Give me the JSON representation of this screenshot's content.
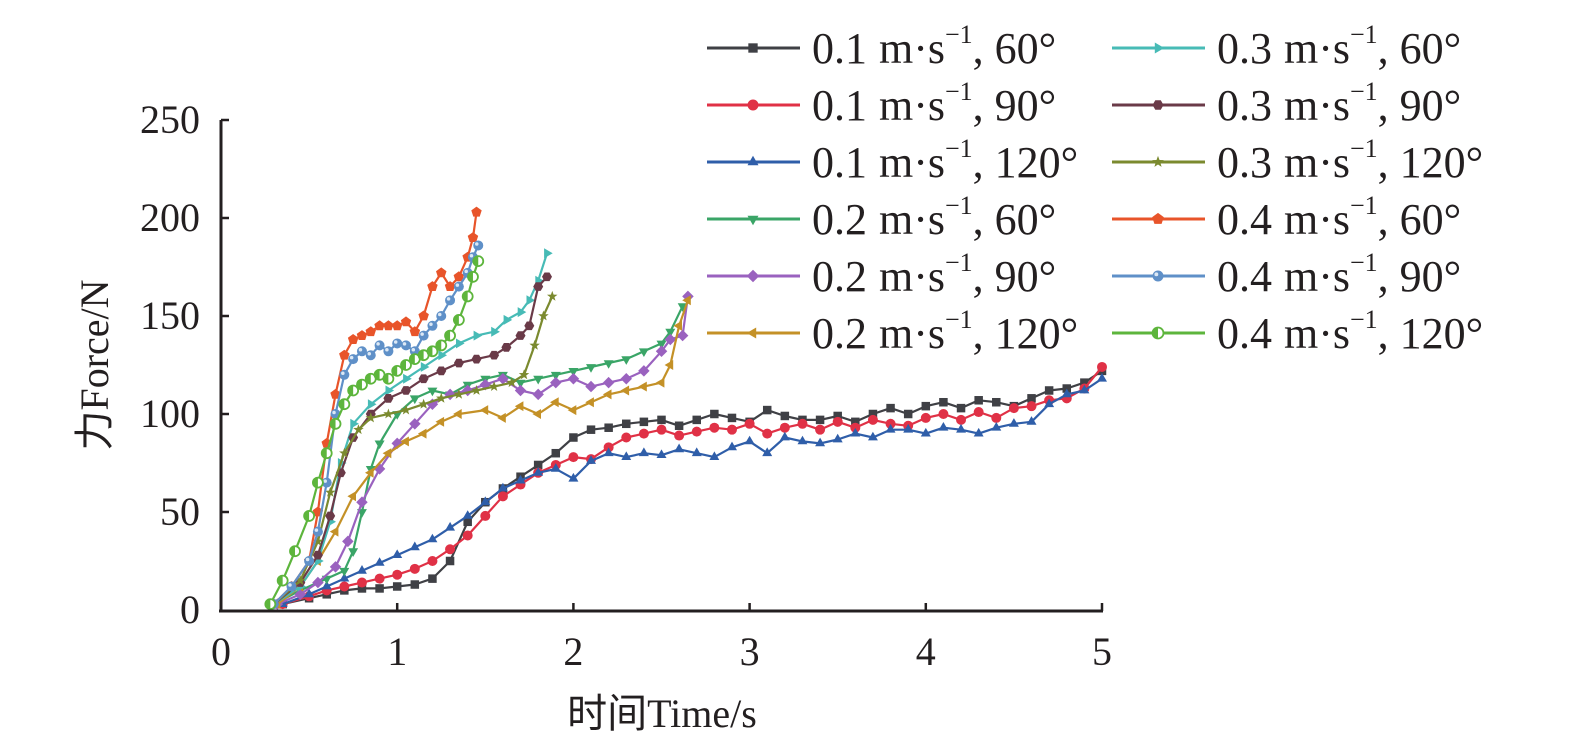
{
  "chart_data": {
    "type": "line",
    "title": "",
    "xlabel": "时间Time/s",
    "ylabel": "力Force/N",
    "xlim": [
      0,
      5
    ],
    "ylim": [
      0,
      250
    ],
    "xticks": [
      "0",
      "1",
      "2",
      "3",
      "4",
      "5"
    ],
    "yticks": [
      "0",
      "50",
      "100",
      "150",
      "200",
      "250"
    ],
    "grid": false,
    "legend_position": "top-right",
    "legend_unit": "m·s",
    "legend_exponent": "−1",
    "series": [
      {
        "name": "0.1 m·s−1, 60°",
        "speed": "0.1",
        "angle": "60°",
        "color": "#3f4045",
        "marker": "square",
        "x": [
          0.35,
          0.5,
          0.6,
          0.7,
          0.8,
          0.9,
          1.0,
          1.1,
          1.2,
          1.3,
          1.4,
          1.5,
          1.6,
          1.7,
          1.8,
          1.9,
          2.0,
          2.1,
          2.2,
          2.3,
          2.4,
          2.5,
          2.6,
          2.7,
          2.8,
          2.9,
          3.0,
          3.1,
          3.2,
          3.3,
          3.4,
          3.5,
          3.6,
          3.7,
          3.8,
          3.9,
          4.0,
          4.1,
          4.2,
          4.3,
          4.4,
          4.5,
          4.6,
          4.7,
          4.8,
          4.9,
          5.0
        ],
        "y": [
          3,
          6,
          8,
          10,
          11,
          11,
          12,
          13,
          16,
          25,
          45,
          55,
          62,
          68,
          74,
          80,
          88,
          92,
          93,
          95,
          96,
          97,
          94,
          97,
          100,
          98,
          96,
          102,
          99,
          97,
          97,
          99,
          96,
          100,
          103,
          100,
          104,
          106,
          103,
          107,
          106,
          104,
          108,
          112,
          113,
          116,
          122
        ]
      },
      {
        "name": "0.1 m·s−1, 90°",
        "speed": "0.1",
        "angle": "90°",
        "color": "#e03146",
        "marker": "circle",
        "x": [
          0.35,
          0.5,
          0.6,
          0.7,
          0.8,
          0.9,
          1.0,
          1.1,
          1.2,
          1.3,
          1.4,
          1.5,
          1.6,
          1.7,
          1.8,
          1.9,
          2.0,
          2.1,
          2.2,
          2.3,
          2.4,
          2.5,
          2.6,
          2.7,
          2.8,
          2.9,
          3.0,
          3.1,
          3.2,
          3.3,
          3.4,
          3.5,
          3.6,
          3.7,
          3.8,
          3.9,
          4.0,
          4.1,
          4.2,
          4.3,
          4.4,
          4.5,
          4.6,
          4.7,
          4.8,
          4.9,
          5.0
        ],
        "y": [
          3,
          7,
          10,
          12,
          14,
          16,
          18,
          21,
          25,
          31,
          38,
          48,
          58,
          64,
          70,
          74,
          78,
          77,
          83,
          88,
          90,
          92,
          89,
          91,
          93,
          92,
          95,
          90,
          93,
          95,
          92,
          96,
          93,
          97,
          95,
          94,
          98,
          100,
          97,
          101,
          98,
          103,
          104,
          107,
          108,
          113,
          124
        ]
      },
      {
        "name": "0.1 m·s−1, 120°",
        "speed": "0.1",
        "angle": "120°",
        "color": "#2f5ea9",
        "marker": "triangle-up",
        "x": [
          0.35,
          0.5,
          0.6,
          0.7,
          0.8,
          0.9,
          1.0,
          1.1,
          1.2,
          1.3,
          1.4,
          1.5,
          1.6,
          1.7,
          1.8,
          1.9,
          2.0,
          2.1,
          2.2,
          2.3,
          2.4,
          2.5,
          2.6,
          2.7,
          2.8,
          2.9,
          3.0,
          3.1,
          3.2,
          3.3,
          3.4,
          3.5,
          3.6,
          3.7,
          3.8,
          3.9,
          4.0,
          4.1,
          4.2,
          4.3,
          4.4,
          4.5,
          4.6,
          4.7,
          4.8,
          4.9,
          5.0
        ],
        "y": [
          3,
          8,
          12,
          16,
          20,
          24,
          28,
          32,
          36,
          42,
          48,
          55,
          62,
          66,
          70,
          72,
          67,
          76,
          80,
          78,
          80,
          79,
          82,
          80,
          78,
          83,
          86,
          80,
          88,
          86,
          85,
          87,
          90,
          88,
          92,
          92,
          90,
          93,
          92,
          90,
          93,
          95,
          96,
          105,
          110,
          112,
          118
        ]
      },
      {
        "name": "0.2 m·s−1, 60°",
        "speed": "0.2",
        "angle": "60°",
        "color": "#3aa567",
        "marker": "triangle-down",
        "x": [
          0.3,
          0.45,
          0.6,
          0.7,
          0.75,
          0.8,
          0.85,
          0.9,
          1.0,
          1.1,
          1.2,
          1.3,
          1.4,
          1.5,
          1.6,
          1.7,
          1.8,
          1.9,
          2.0,
          2.1,
          2.2,
          2.3,
          2.4,
          2.5,
          2.55,
          2.62
        ],
        "y": [
          3,
          10,
          16,
          20,
          30,
          50,
          72,
          85,
          100,
          108,
          112,
          110,
          115,
          118,
          120,
          116,
          118,
          120,
          122,
          124,
          126,
          128,
          132,
          136,
          142,
          155
        ]
      },
      {
        "name": "0.2 m·s−1, 90°",
        "speed": "0.2",
        "angle": "90°",
        "color": "#9a62bf",
        "marker": "diamond",
        "x": [
          0.32,
          0.45,
          0.55,
          0.65,
          0.72,
          0.8,
          0.9,
          1.0,
          1.1,
          1.2,
          1.3,
          1.4,
          1.5,
          1.6,
          1.7,
          1.8,
          1.9,
          2.0,
          2.1,
          2.2,
          2.3,
          2.4,
          2.5,
          2.55,
          2.62,
          2.65
        ],
        "y": [
          3,
          8,
          14,
          22,
          35,
          55,
          72,
          85,
          95,
          105,
          110,
          112,
          115,
          118,
          112,
          110,
          116,
          118,
          114,
          116,
          118,
          122,
          132,
          138,
          140,
          160
        ]
      },
      {
        "name": "0.2 m·s−1, 120°",
        "speed": "0.2",
        "angle": "120°",
        "color": "#c49127",
        "marker": "triangle-left",
        "x": [
          0.32,
          0.45,
          0.55,
          0.65,
          0.75,
          0.85,
          0.95,
          1.05,
          1.15,
          1.25,
          1.35,
          1.5,
          1.6,
          1.7,
          1.8,
          1.9,
          2.0,
          2.1,
          2.2,
          2.3,
          2.4,
          2.5,
          2.55,
          2.6,
          2.65
        ],
        "y": [
          3,
          12,
          25,
          40,
          58,
          70,
          80,
          86,
          90,
          96,
          100,
          102,
          98,
          104,
          100,
          106,
          102,
          106,
          110,
          112,
          114,
          116,
          125,
          145,
          158
        ]
      },
      {
        "name": "0.3 m·s−1, 60°",
        "speed": "0.3",
        "angle": "60°",
        "color": "#47bbb6",
        "marker": "triangle-right",
        "x": [
          0.3,
          0.45,
          0.55,
          0.62,
          0.68,
          0.75,
          0.85,
          0.95,
          1.05,
          1.15,
          1.25,
          1.35,
          1.45,
          1.55,
          1.62,
          1.7,
          1.75,
          1.8,
          1.85
        ],
        "y": [
          3,
          12,
          25,
          45,
          75,
          95,
          105,
          112,
          118,
          124,
          130,
          136,
          140,
          142,
          148,
          152,
          158,
          168,
          182
        ]
      },
      {
        "name": "0.3 m·s−1, 90°",
        "speed": "0.3",
        "angle": "90°",
        "color": "#6a3a48",
        "marker": "hexagon",
        "x": [
          0.3,
          0.45,
          0.55,
          0.62,
          0.68,
          0.75,
          0.85,
          0.95,
          1.05,
          1.15,
          1.25,
          1.35,
          1.45,
          1.55,
          1.62,
          1.7,
          1.75,
          1.8,
          1.85
        ],
        "y": [
          3,
          14,
          28,
          48,
          70,
          88,
          100,
          108,
          112,
          118,
          122,
          126,
          128,
          130,
          134,
          140,
          145,
          165,
          170
        ]
      },
      {
        "name": "0.3 m·s−1, 120°",
        "speed": "0.3",
        "angle": "120°",
        "color": "#7b8a2f",
        "marker": "star",
        "x": [
          0.3,
          0.45,
          0.55,
          0.62,
          0.7,
          0.78,
          0.85,
          0.95,
          1.05,
          1.15,
          1.25,
          1.35,
          1.45,
          1.55,
          1.65,
          1.72,
          1.78,
          1.83,
          1.88
        ],
        "y": [
          3,
          15,
          35,
          60,
          80,
          92,
          98,
          100,
          102,
          105,
          108,
          110,
          112,
          114,
          116,
          120,
          135,
          150,
          160
        ]
      },
      {
        "name": "0.4 m·s−1, 60°",
        "speed": "0.4",
        "angle": "60°",
        "color": "#e8542a",
        "marker": "pentagon",
        "x": [
          0.3,
          0.4,
          0.5,
          0.55,
          0.6,
          0.65,
          0.7,
          0.75,
          0.8,
          0.85,
          0.9,
          0.95,
          1.0,
          1.05,
          1.1,
          1.15,
          1.2,
          1.25,
          1.3,
          1.35,
          1.4,
          1.43,
          1.45
        ],
        "y": [
          3,
          12,
          25,
          50,
          85,
          110,
          130,
          138,
          140,
          142,
          145,
          145,
          145,
          147,
          142,
          150,
          165,
          172,
          165,
          170,
          180,
          190,
          203
        ]
      },
      {
        "name": "0.4 m·s−1, 90°",
        "speed": "0.4",
        "angle": "90°",
        "color": "#5f90c8",
        "marker": "ball",
        "x": [
          0.3,
          0.4,
          0.5,
          0.55,
          0.6,
          0.65,
          0.7,
          0.75,
          0.8,
          0.85,
          0.9,
          0.95,
          1.0,
          1.05,
          1.1,
          1.15,
          1.2,
          1.25,
          1.3,
          1.35,
          1.4,
          1.43,
          1.46
        ],
        "y": [
          3,
          12,
          25,
          40,
          65,
          100,
          120,
          128,
          132,
          130,
          135,
          132,
          136,
          135,
          132,
          140,
          145,
          150,
          158,
          165,
          172,
          180,
          186
        ]
      },
      {
        "name": "0.4 m·s−1, 120°",
        "speed": "0.4",
        "angle": "120°",
        "color": "#5db53c",
        "marker": "half-circle",
        "x": [
          0.28,
          0.35,
          0.42,
          0.5,
          0.55,
          0.6,
          0.65,
          0.7,
          0.75,
          0.8,
          0.85,
          0.9,
          0.95,
          1.0,
          1.05,
          1.1,
          1.15,
          1.2,
          1.25,
          1.3,
          1.35,
          1.4,
          1.43,
          1.46
        ],
        "y": [
          3,
          15,
          30,
          48,
          65,
          80,
          95,
          105,
          112,
          115,
          118,
          120,
          118,
          122,
          125,
          128,
          130,
          132,
          135,
          140,
          148,
          160,
          170,
          178
        ]
      }
    ]
  }
}
